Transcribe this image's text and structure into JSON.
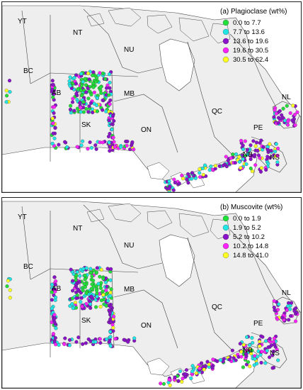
{
  "panels": [
    {
      "id": "a",
      "title": "(a) Plagioclase (wt%)",
      "legend": [
        {
          "label": "0.0  to  7.7",
          "color": "#22e03a"
        },
        {
          "label": "7.7  to  13.6",
          "color": "#22e6e6"
        },
        {
          "label": "13.6  to  19.6",
          "color": "#8a12c8"
        },
        {
          "label": "19.6  to  30.5",
          "color": "#ff22ff"
        },
        {
          "label": "30.5  to  62.4",
          "color": "#ffff22"
        }
      ]
    },
    {
      "id": "b",
      "title": "(b) Muscovite (wt%)",
      "legend": [
        {
          "label": "0.0  to  1.9",
          "color": "#22e03a"
        },
        {
          "label": "1.9  to  5.2",
          "color": "#22e6e6"
        },
        {
          "label": "5.2  to  10.2",
          "color": "#8a12c8"
        },
        {
          "label": "10.2  to  14.8",
          "color": "#ff22ff"
        },
        {
          "label": "14.8  to  41.0",
          "color": "#ffff22"
        }
      ]
    }
  ],
  "province_labels": [
    "YT",
    "NT",
    "NU",
    "BC",
    "AB",
    "MB",
    "SK",
    "ON",
    "QC",
    "NL",
    "PE",
    "NB",
    "NS"
  ],
  "colors": {
    "land": "#eeeeee",
    "water": "#ffffff",
    "border": "#444444"
  }
}
